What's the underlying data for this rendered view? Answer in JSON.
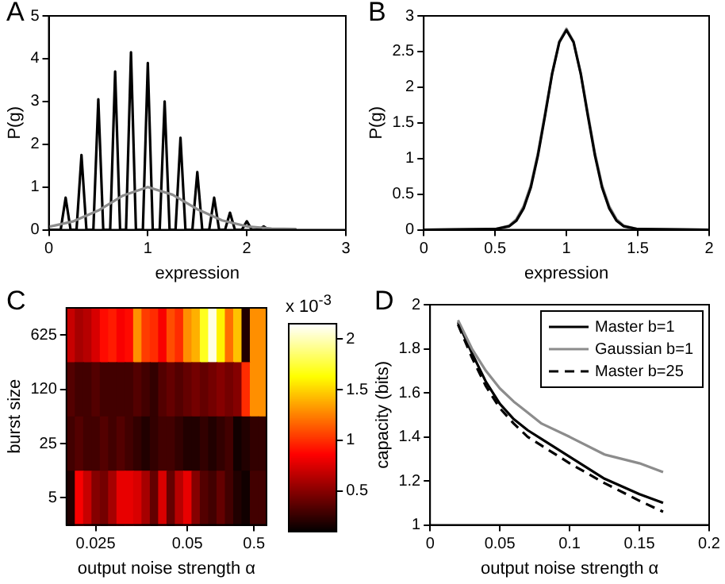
{
  "chart_data": [
    {
      "type": "line",
      "title": "A",
      "xlabel": "expression",
      "ylabel": "P(g)",
      "xlim": [
        0,
        3
      ],
      "xticks": [
        0,
        1,
        2,
        3
      ],
      "ylim": [
        0,
        5
      ],
      "yticks": [
        0,
        1,
        2,
        3,
        4,
        5
      ],
      "marker": "none",
      "series": [
        {
          "color": "#000000",
          "x": [
            0,
            0.12,
            0.17,
            0.22,
            0.28,
            0.33,
            0.38,
            0.45,
            0.5,
            0.55,
            0.62,
            0.67,
            0.72,
            0.78,
            0.83,
            0.88,
            0.95,
            1.0,
            1.05,
            1.12,
            1.17,
            1.22,
            1.28,
            1.33,
            1.38,
            1.45,
            1.5,
            1.55,
            1.62,
            1.67,
            1.72,
            1.78,
            1.83,
            1.88,
            1.95,
            2.0,
            2.05,
            2.12,
            2.17,
            2.22,
            2.5
          ],
          "values": [
            0,
            0,
            0.75,
            0,
            0,
            1.75,
            0,
            0,
            3.05,
            0,
            0,
            3.7,
            0,
            0,
            4.15,
            0,
            0,
            3.9,
            0,
            0,
            3.0,
            0,
            0,
            2.15,
            0,
            0,
            1.35,
            0,
            0,
            0.75,
            0,
            0,
            0.4,
            0,
            0,
            0.2,
            0,
            0,
            0.08,
            0,
            0
          ]
        },
        {
          "color": "#8c8c8c",
          "x": [
            0,
            0.25,
            0.5,
            0.75,
            1,
            1.25,
            1.5,
            1.75,
            2,
            2.25,
            2.5
          ],
          "values": [
            0.07,
            0.2,
            0.45,
            0.8,
            1.0,
            0.82,
            0.48,
            0.22,
            0.08,
            0.03,
            0.02
          ]
        }
      ]
    },
    {
      "type": "line",
      "title": "B",
      "xlabel": "expression",
      "ylabel": "P(g)",
      "xlim": [
        0,
        2
      ],
      "xticks": [
        0,
        0.5,
        1,
        1.5,
        2
      ],
      "ylim": [
        0,
        3
      ],
      "yticks": [
        0,
        0.5,
        1,
        1.5,
        2,
        2.5,
        3
      ],
      "marker": "none",
      "x": [
        0,
        0.5,
        0.6,
        0.65,
        0.7,
        0.75,
        0.8,
        0.85,
        0.9,
        0.95,
        1,
        1.05,
        1.1,
        1.15,
        1.2,
        1.25,
        1.3,
        1.35,
        1.4,
        1.5,
        2
      ],
      "series": [
        {
          "color": "#8c8c8c",
          "values": [
            0,
            0.01,
            0.06,
            0.15,
            0.33,
            0.62,
            1.07,
            1.63,
            2.2,
            2.64,
            2.82,
            2.64,
            2.2,
            1.63,
            1.07,
            0.62,
            0.33,
            0.15,
            0.06,
            0.01,
            0
          ]
        },
        {
          "color": "#000000",
          "values": [
            0,
            0.01,
            0.05,
            0.13,
            0.3,
            0.59,
            1.04,
            1.6,
            2.19,
            2.63,
            2.8,
            2.63,
            2.19,
            1.6,
            1.04,
            0.59,
            0.3,
            0.13,
            0.05,
            0.01,
            0
          ]
        }
      ]
    },
    {
      "type": "heatmap",
      "title": "C",
      "xlabel": "output noise strength α",
      "ylabel": "burst size",
      "clabel": "x 10$^{-3}$",
      "clim": [
        0.1,
        2.15
      ],
      "cticks": [
        0.5,
        1,
        1.5,
        2
      ],
      "categories": [
        null,
        null,
        null,
        "0.025",
        null,
        null,
        null,
        null,
        null,
        null,
        null,
        null,
        null,
        null,
        "0.05",
        null,
        null,
        null,
        null,
        null,
        null,
        null,
        "0.5",
        null
      ],
      "y_categories": [
        "625",
        "120",
        "25",
        "5"
      ],
      "cells": [
        [
          0.7,
          0.6,
          0.65,
          0.75,
          0.9,
          0.95,
          0.85,
          0.9,
          1.3,
          1.05,
          1.0,
          0.85,
          1.1,
          1.0,
          1.3,
          1.4,
          1.7,
          2.1,
          1.6,
          1.2,
          1.45,
          0.2,
          1.3,
          1.3
        ],
        [
          0.35,
          0.3,
          0.3,
          0.35,
          0.3,
          0.3,
          0.3,
          0.3,
          0.35,
          0.3,
          0.25,
          0.35,
          0.4,
          0.35,
          0.4,
          0.45,
          0.4,
          0.45,
          0.5,
          0.45,
          0.5,
          1.0,
          1.3,
          1.3
        ],
        [
          0.3,
          0.35,
          0.3,
          0.3,
          0.35,
          0.3,
          0.35,
          0.3,
          0.25,
          0.2,
          0.25,
          0.3,
          0.3,
          0.25,
          0.2,
          0.2,
          0.25,
          0.2,
          0.25,
          0.3,
          0.15,
          0.2,
          0.25,
          0.25
        ],
        [
          0.2,
          0.85,
          0.7,
          0.5,
          0.45,
          0.6,
          0.8,
          0.8,
          0.75,
          0.6,
          0.4,
          0.75,
          0.4,
          0.65,
          0.8,
          0.5,
          0.35,
          0.3,
          0.4,
          0.3,
          0.2,
          0.15,
          0.3,
          0.3
        ]
      ]
    },
    {
      "type": "line",
      "title": "D",
      "xlabel": "output noise strength α",
      "ylabel": "capacity (bits)",
      "xlim": [
        0,
        0.2
      ],
      "xticks": [
        0,
        0.05,
        0.1,
        0.15,
        0.2
      ],
      "ylim": [
        1,
        2
      ],
      "yticks": [
        1,
        1.2,
        1.4,
        1.6,
        1.8,
        2
      ],
      "marker": "none",
      "legend": "top right",
      "x": [
        0.02,
        0.03,
        0.04,
        0.05,
        0.06,
        0.07,
        0.08,
        0.1,
        0.125,
        0.15,
        0.167
      ],
      "series": [
        {
          "name": "Master b=1",
          "color": "#000000",
          "values": [
            1.92,
            1.78,
            1.65,
            1.55,
            1.48,
            1.43,
            1.39,
            1.31,
            1.21,
            1.14,
            1.1
          ]
        },
        {
          "name": "Gaussian b=1",
          "color": "#8c8c8c",
          "values": [
            1.93,
            1.8,
            1.7,
            1.62,
            1.56,
            1.51,
            1.46,
            1.4,
            1.32,
            1.28,
            1.24
          ]
        },
        {
          "name": "Master b=25",
          "color": "#000000",
          "line_style": "dashed",
          "values": [
            1.91,
            1.76,
            1.63,
            1.53,
            1.46,
            1.4,
            1.36,
            1.28,
            1.19,
            1.11,
            1.06
          ]
        }
      ]
    }
  ]
}
